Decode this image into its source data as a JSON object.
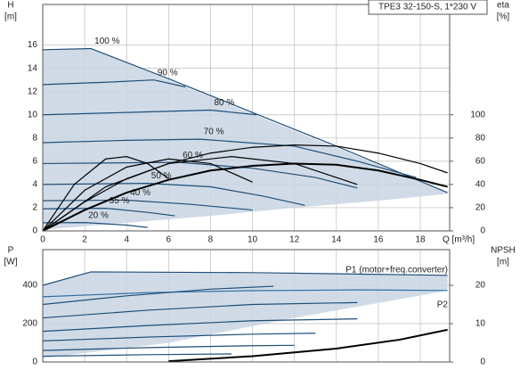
{
  "chart_data": [
    {
      "type": "line",
      "title": "TPE3 32-150-S, 1*230 V",
      "y_label": "H",
      "y_unit": "[m]",
      "y2_label": "eta",
      "y2_unit": "[%]",
      "x_label": "Q [m³/h]",
      "xlim": [
        0,
        19.4
      ],
      "xticks": [
        0,
        2,
        4,
        6,
        8,
        10,
        12,
        14,
        16,
        18
      ],
      "xtick_labels": true,
      "ylim": [
        0,
        19.5
      ],
      "yticks": [
        0,
        2,
        4,
        6,
        8,
        10,
        12,
        14,
        16
      ],
      "y2lim": [
        0,
        195
      ],
      "y2ticks": [
        0,
        20,
        40,
        60,
        80,
        100
      ],
      "grid": true,
      "operating_range": {
        "color": "#c8d5e3",
        "x": [
          0,
          2.3,
          19.3,
          19.3,
          16,
          12,
          8,
          4,
          0
        ],
        "values": [
          15.6,
          15.7,
          3.3,
          3.2,
          2.6,
          2.0,
          1.3,
          0.7,
          0.1
        ]
      },
      "series": [
        {
          "name": "100 %",
          "color": "#1f4e79",
          "x": [
            0,
            2.3,
            6,
            10,
            14,
            19.3
          ],
          "values": [
            15.6,
            15.7,
            13.1,
            10.2,
            7.3,
            3.3
          ]
        },
        {
          "name": "90 %",
          "color": "#1f4e79",
          "x": [
            0,
            3,
            5.3,
            6.8
          ],
          "values": [
            12.6,
            12.8,
            13.0,
            12.4
          ]
        },
        {
          "name": "80 %",
          "color": "#1f4e79",
          "x": [
            0,
            4,
            8,
            10.2
          ],
          "values": [
            10.0,
            10.2,
            10.4,
            10.0
          ]
        },
        {
          "name": "70 %",
          "color": "#1f4e79",
          "x": [
            0,
            4,
            7.5,
            12,
            15,
            17.8
          ],
          "values": [
            7.6,
            7.8,
            7.9,
            7.3,
            6.0,
            4.6
          ]
        },
        {
          "name": "60 %",
          "color": "#1f4e79",
          "x": [
            0,
            6.5,
            10,
            13,
            15
          ],
          "values": [
            5.8,
            5.9,
            5.4,
            4.6,
            3.7
          ]
        },
        {
          "name": "50 %",
          "color": "#1f4e79",
          "x": [
            0,
            5,
            8,
            10.5,
            12.5
          ],
          "values": [
            4.0,
            4.1,
            3.8,
            3.0,
            2.2
          ]
        },
        {
          "name": "40 %",
          "color": "#1f4e79",
          "x": [
            0,
            4,
            7,
            10
          ],
          "values": [
            2.6,
            2.65,
            2.3,
            1.8
          ]
        },
        {
          "name": "35 %",
          "color": "#1f4e79",
          "x": [
            0,
            3,
            5,
            6.3
          ],
          "values": [
            1.9,
            1.95,
            1.6,
            1.3
          ]
        },
        {
          "name": "20 %",
          "color": "#1f4e79",
          "x": [
            0,
            2,
            4,
            5
          ],
          "values": [
            0.7,
            0.72,
            0.5,
            0.3
          ]
        },
        {
          "axis": "y2",
          "color": "#000000",
          "x": [
            0,
            2,
            4,
            6,
            8,
            10,
            12,
            14,
            16,
            18,
            19.3
          ],
          "values": [
            0,
            25,
            45,
            58,
            67,
            72,
            74,
            73,
            67,
            58,
            50
          ]
        },
        {
          "axis": "y2",
          "color": "#000000",
          "width": 2,
          "x": [
            0,
            2,
            4,
            6,
            8,
            10,
            12,
            14,
            16,
            18,
            19.3
          ],
          "values": [
            0,
            18,
            33,
            44,
            52,
            56,
            58,
            57,
            52,
            44,
            38
          ]
        },
        {
          "axis": "y2",
          "color": "#000000",
          "x": [
            0,
            1.5,
            3,
            4,
            5,
            6
          ],
          "values": [
            0,
            40,
            62,
            64,
            58,
            45
          ]
        },
        {
          "axis": "y2",
          "color": "#000000",
          "x": [
            0,
            2,
            4,
            6,
            8,
            10
          ],
          "values": [
            0,
            35,
            55,
            62,
            58,
            42
          ]
        },
        {
          "axis": "y2",
          "color": "#000000",
          "x": [
            0,
            3,
            6,
            9,
            12,
            15
          ],
          "values": [
            0,
            38,
            58,
            64,
            58,
            40
          ]
        }
      ]
    },
    {
      "type": "line",
      "y_label": "P",
      "y_unit": "[W]",
      "y2_label": "NPSH",
      "y2_unit": "[m]",
      "xlim": [
        0,
        19.4
      ],
      "xticks": [
        0,
        2,
        4,
        6,
        8,
        10,
        12,
        14,
        16,
        18
      ],
      "xtick_labels": false,
      "ylim": [
        0,
        586
      ],
      "yticks": [
        0,
        200,
        400
      ],
      "y2lim": [
        0,
        29.3
      ],
      "y2ticks": [
        0,
        10,
        20
      ],
      "grid": true,
      "operating_range": {
        "color": "#c8d5e3",
        "x": [
          0,
          2.3,
          19.3,
          19.3,
          12,
          6,
          0
        ],
        "values": [
          400,
          470,
          452,
          372,
          230,
          100,
          20
        ]
      },
      "series": [
        {
          "name": "P1 (motor+freq.converter)",
          "color": "#1f4e79",
          "x": [
            0,
            2.3,
            10,
            19.3
          ],
          "values": [
            400,
            470,
            466,
            452
          ]
        },
        {
          "name": "P2",
          "color": "#2e6da4",
          "x": [
            0,
            5,
            10,
            15,
            19.3
          ],
          "values": [
            340,
            362,
            372,
            376,
            373
          ]
        },
        {
          "color": "#1f4e79",
          "x": [
            0,
            4,
            8,
            11
          ],
          "values": [
            300,
            345,
            380,
            395
          ]
        },
        {
          "color": "#1f4e79",
          "x": [
            0,
            5,
            10,
            15
          ],
          "values": [
            230,
            270,
            300,
            310
          ]
        },
        {
          "color": "#1f4e79",
          "x": [
            0,
            5,
            10,
            15
          ],
          "values": [
            160,
            190,
            215,
            225
          ]
        },
        {
          "color": "#1f4e79",
          "x": [
            0,
            5,
            10,
            13
          ],
          "values": [
            110,
            130,
            145,
            150
          ]
        },
        {
          "color": "#1f4e79",
          "x": [
            0,
            5,
            10,
            12
          ],
          "values": [
            60,
            75,
            85,
            87
          ]
        },
        {
          "color": "#1f4e79",
          "x": [
            0,
            5,
            9
          ],
          "values": [
            30,
            38,
            42
          ]
        },
        {
          "axis": "y2",
          "color": "#000000",
          "width": 2,
          "x": [
            6,
            10,
            14,
            17,
            19.3
          ],
          "values": [
            0.2,
            1.5,
            3.5,
            5.8,
            8.4
          ]
        }
      ]
    }
  ]
}
